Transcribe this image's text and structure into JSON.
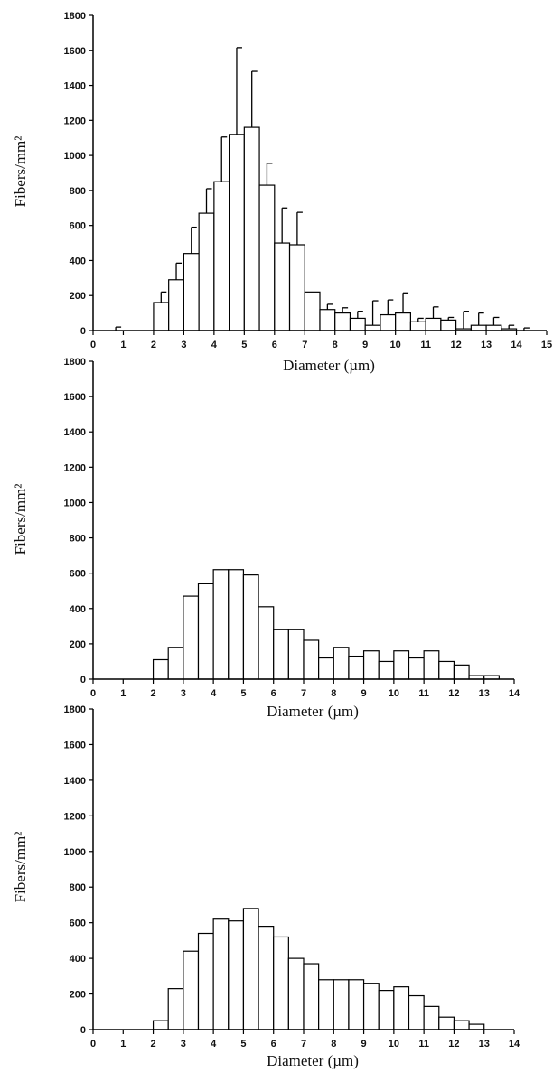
{
  "chart_data": [
    {
      "type": "bar",
      "xlabel": "Diameter (µm)",
      "ylabel": "Fibers/mm²",
      "ylim": [
        0,
        1800
      ],
      "yticks": [
        0,
        200,
        400,
        600,
        800,
        1000,
        1200,
        1400,
        1600,
        1800
      ],
      "xlim": [
        0,
        15
      ],
      "xticks": [
        0,
        1,
        2,
        3,
        4,
        5,
        6,
        7,
        8,
        9,
        10,
        11,
        12,
        13,
        14,
        15
      ],
      "bin_width": 0.5,
      "bins": [
        0.5,
        1.0,
        1.5,
        2.0,
        2.5,
        3.0,
        3.5,
        4.0,
        4.5,
        5.0,
        5.5,
        6.0,
        6.5,
        7.0,
        7.5,
        8.0,
        8.5,
        9.0,
        9.5,
        10.0,
        10.5,
        11.0,
        11.5,
        12.0,
        12.5,
        13.0,
        13.5,
        14.0
      ],
      "values": [
        0,
        0,
        0,
        160,
        290,
        440,
        670,
        850,
        1120,
        1160,
        830,
        500,
        490,
        220,
        120,
        100,
        70,
        30,
        90,
        100,
        50,
        70,
        60,
        10,
        30,
        30,
        10,
        0
      ],
      "error_plus": [
        20,
        0,
        0,
        60,
        95,
        150,
        140,
        255,
        495,
        320,
        125,
        200,
        185,
        0,
        30,
        30,
        40,
        140,
        85,
        115,
        20,
        65,
        15,
        100,
        70,
        45,
        20,
        15
      ],
      "grid": false,
      "legend": "none"
    },
    {
      "type": "bar",
      "xlabel": "Diameter (µm)",
      "ylabel": "Fibers/mm²",
      "ylim": [
        0,
        1800
      ],
      "yticks": [
        0,
        200,
        400,
        600,
        800,
        1000,
        1200,
        1400,
        1600,
        1800
      ],
      "xlim": [
        0,
        14
      ],
      "xticks": [
        0,
        1,
        2,
        3,
        4,
        5,
        6,
        7,
        8,
        9,
        10,
        11,
        12,
        13,
        14
      ],
      "bin_width": 0.5,
      "bins": [
        0.0,
        0.5,
        1.0,
        1.5,
        2.0,
        2.5,
        3.0,
        3.5,
        4.0,
        4.5,
        5.0,
        5.5,
        6.0,
        6.5,
        7.0,
        7.5,
        8.0,
        8.5,
        9.0,
        9.5,
        10.0,
        10.5,
        11.0,
        11.5,
        12.0,
        12.5,
        13.0,
        13.5
      ],
      "values": [
        0,
        0,
        0,
        0,
        110,
        180,
        470,
        540,
        620,
        620,
        590,
        410,
        280,
        280,
        220,
        120,
        180,
        130,
        160,
        100,
        160,
        120,
        160,
        100,
        80,
        20,
        20,
        0
      ],
      "grid": false,
      "legend": "none"
    },
    {
      "type": "bar",
      "xlabel": "Diameter (µm)",
      "ylabel": "Fibers/mm²",
      "ylim": [
        0,
        1800
      ],
      "yticks": [
        0,
        200,
        400,
        600,
        800,
        1000,
        1200,
        1400,
        1600,
        1800
      ],
      "xlim": [
        0,
        14
      ],
      "xticks": [
        0,
        1,
        2,
        3,
        4,
        5,
        6,
        7,
        8,
        9,
        10,
        11,
        12,
        13,
        14
      ],
      "bin_width": 0.5,
      "bins": [
        0.0,
        0.5,
        1.0,
        1.5,
        2.0,
        2.5,
        3.0,
        3.5,
        4.0,
        4.5,
        5.0,
        5.5,
        6.0,
        6.5,
        7.0,
        7.5,
        8.0,
        8.5,
        9.0,
        9.5,
        10.0,
        10.5,
        11.0,
        11.5,
        12.0,
        12.5,
        13.0,
        13.5
      ],
      "values": [
        0,
        0,
        0,
        0,
        50,
        230,
        440,
        540,
        620,
        610,
        680,
        580,
        520,
        400,
        370,
        280,
        280,
        280,
        260,
        220,
        240,
        190,
        130,
        70,
        50,
        30,
        0,
        0
      ],
      "grid": false,
      "legend": "none"
    }
  ]
}
